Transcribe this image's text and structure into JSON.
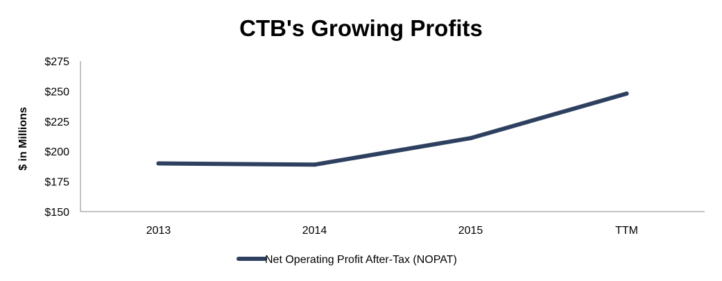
{
  "chart_data": {
    "type": "line",
    "title": "CTB's Growing Profits",
    "xlabel": "",
    "ylabel": "$ in Millions",
    "categories": [
      "2013",
      "2014",
      "2015",
      "TTM"
    ],
    "series": [
      {
        "name": "Net Operating Profit After-Tax (NOPAT)",
        "values": [
          190,
          189,
          211,
          248
        ],
        "color": "#2e4060"
      }
    ],
    "ylim": [
      150,
      275
    ],
    "yticks": [
      150,
      175,
      200,
      225,
      250,
      275
    ],
    "ytick_labels": [
      "$150",
      "$175",
      "$200",
      "$225",
      "$250",
      "$275"
    ],
    "grid": false,
    "legend_position": "bottom"
  }
}
